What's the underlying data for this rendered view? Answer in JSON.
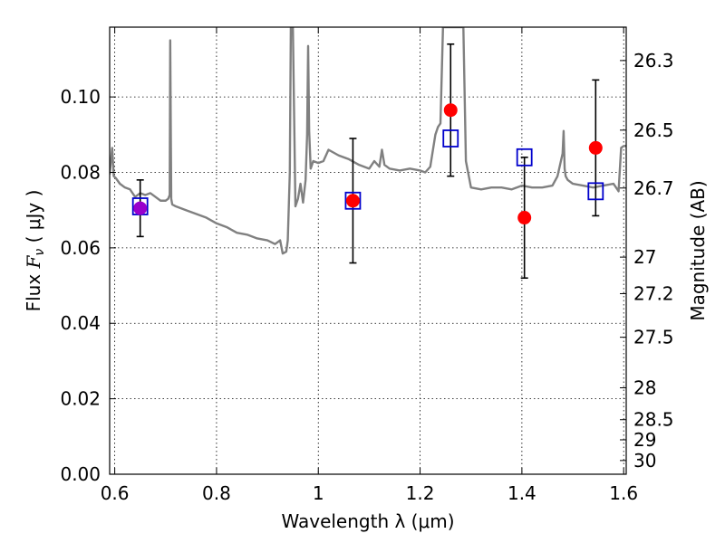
{
  "chart_data": {
    "type": "scatter",
    "xlabel": "Wavelength  λ (μm)",
    "ylabel_prefix": "Flux ",
    "ylabel_symbol": "F",
    "ylabel_symbol_sub": "ν",
    "ylabel_suffix": "  ( μJy )",
    "ylabel_right": "Magnitude (AB)",
    "xlim": [
      0.59,
      1.605
    ],
    "ylim": [
      0.0,
      0.1185
    ],
    "x_ticks": [
      0.6,
      0.8,
      1.0,
      1.2,
      1.4,
      1.6
    ],
    "x_tick_labels": [
      "0.6",
      "0.8",
      "1",
      "1.2",
      "1.4",
      "1.6"
    ],
    "y_ticks": [
      0.0,
      0.02,
      0.04,
      0.06,
      0.08,
      0.1
    ],
    "y_tick_labels": [
      "0.00",
      "0.02",
      "0.04",
      "0.06",
      "0.08",
      "0.10"
    ],
    "mag_ticks": [
      26.3,
      26.5,
      26.7,
      27,
      27.2,
      27.5,
      28,
      28.5,
      29,
      30
    ],
    "mag_tick_labels": [
      "26.3",
      "26.5",
      "26.7",
      "27",
      "27.2",
      "27.5",
      "28",
      "28.5",
      "29",
      "30"
    ],
    "grid": true,
    "colors": {
      "model": "#808080",
      "observed": "#ff0000",
      "model_points": "#0000cc",
      "errorbar": "#000000",
      "overlap": "#9900cc"
    },
    "series": [
      {
        "name": "model-spectrum",
        "style": "line",
        "x": [
          0.59,
          0.595,
          0.598,
          0.602,
          0.61,
          0.62,
          0.63,
          0.64,
          0.65,
          0.66,
          0.67,
          0.68,
          0.69,
          0.7,
          0.705,
          0.708,
          0.709,
          0.711,
          0.713,
          0.72,
          0.74,
          0.76,
          0.78,
          0.8,
          0.82,
          0.84,
          0.86,
          0.88,
          0.9,
          0.915,
          0.925,
          0.93,
          0.937,
          0.94,
          0.944,
          0.946,
          0.95,
          0.955,
          0.96,
          0.965,
          0.97,
          0.975,
          0.978,
          0.98,
          0.982,
          0.985,
          0.99,
          1.0,
          1.01,
          1.02,
          1.04,
          1.06,
          1.08,
          1.1,
          1.11,
          1.12,
          1.125,
          1.13,
          1.14,
          1.16,
          1.18,
          1.2,
          1.21,
          1.22,
          1.23,
          1.235,
          1.24,
          1.245,
          1.248,
          1.25,
          1.27,
          1.285,
          1.29,
          1.3,
          1.32,
          1.34,
          1.36,
          1.38,
          1.4,
          1.42,
          1.44,
          1.46,
          1.47,
          1.48,
          1.482,
          1.484,
          1.486,
          1.49,
          1.5,
          1.52,
          1.54,
          1.56,
          1.58,
          1.59,
          1.595,
          1.6,
          1.605
        ],
        "y": [
          0.0795,
          0.0865,
          0.079,
          0.0785,
          0.077,
          0.076,
          0.0755,
          0.0735,
          0.0745,
          0.074,
          0.0745,
          0.0735,
          0.0725,
          0.0725,
          0.073,
          0.074,
          0.115,
          0.073,
          0.0715,
          0.071,
          0.07,
          0.069,
          0.068,
          0.0665,
          0.0655,
          0.064,
          0.0635,
          0.0625,
          0.062,
          0.061,
          0.062,
          0.0585,
          0.059,
          0.062,
          0.08,
          0.1185,
          0.1185,
          0.071,
          0.073,
          0.077,
          0.072,
          0.078,
          0.09,
          0.1135,
          0.091,
          0.081,
          0.083,
          0.0825,
          0.083,
          0.086,
          0.0845,
          0.0835,
          0.082,
          0.081,
          0.083,
          0.0815,
          0.086,
          0.082,
          0.081,
          0.0805,
          0.081,
          0.0805,
          0.08,
          0.0815,
          0.09,
          0.092,
          0.093,
          0.1185,
          0.1185,
          0.1185,
          0.1185,
          0.1185,
          0.083,
          0.076,
          0.0755,
          0.076,
          0.076,
          0.0755,
          0.0765,
          0.076,
          0.076,
          0.0765,
          0.079,
          0.085,
          0.091,
          0.081,
          0.079,
          0.078,
          0.077,
          0.0765,
          0.076,
          0.0765,
          0.077,
          0.075,
          0.0865,
          0.087,
          0.087
        ]
      },
      {
        "name": "observed",
        "style": "errorbar",
        "x": [
          0.65,
          1.068,
          1.26,
          1.405,
          1.545
        ],
        "y": [
          0.0705,
          0.0725,
          0.0965,
          0.068,
          0.0865
        ],
        "yerr": [
          0.0075,
          0.0165,
          0.0175,
          0.016,
          0.018
        ]
      },
      {
        "name": "model-photometry",
        "style": "square",
        "x": [
          0.65,
          1.068,
          1.26,
          1.405,
          1.545
        ],
        "y": [
          0.071,
          0.0725,
          0.089,
          0.084,
          0.075
        ]
      }
    ]
  }
}
